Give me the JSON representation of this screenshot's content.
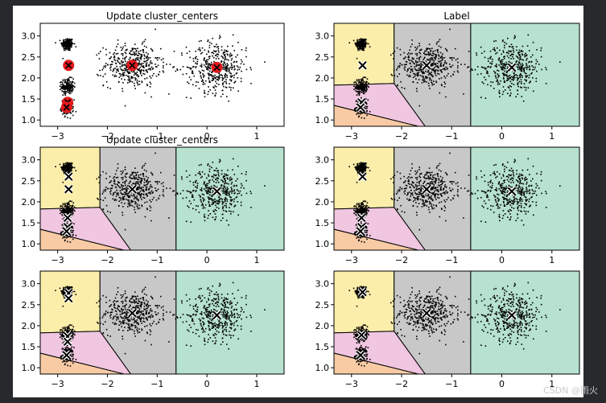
{
  "figure_bg": "#ffffff",
  "page_bg": "#27292d",
  "watermark": "CSDN @雨火",
  "region_colors": [
    "#fbeeaa",
    "#f0c6e0",
    "#f8cba5",
    "#c8c8c8",
    "#b6e2cf"
  ],
  "centroid_color_update": "#e41a1c",
  "chart_data": [
    {
      "type": "scatter",
      "panel": "top-left",
      "title": "Update cluster_centers",
      "xlim": [
        -3.35,
        1.55
      ],
      "ylim": [
        0.85,
        3.3
      ],
      "xticks": [
        -3,
        -2,
        -1,
        0,
        1
      ],
      "yticks": [
        1.0,
        1.5,
        2.0,
        2.5,
        3.0
      ],
      "show_regions": false,
      "blob_centers": [
        [
          -2.8,
          2.8
        ],
        [
          -2.8,
          1.8
        ],
        [
          -2.8,
          1.3
        ],
        [
          -1.5,
          2.3
        ],
        [
          0.2,
          2.25
        ]
      ],
      "centroids": [
        [
          -2.78,
          2.3
        ],
        [
          -2.8,
          1.42
        ],
        [
          -2.82,
          1.3
        ],
        [
          -1.5,
          2.3
        ],
        [
          0.2,
          2.25
        ]
      ],
      "centroid_style": "red-dot"
    },
    {
      "type": "scatter",
      "panel": "top-right",
      "title": "Label",
      "xlim": [
        -3.35,
        1.55
      ],
      "ylim": [
        0.85,
        3.3
      ],
      "xticks": [
        -3,
        -2,
        -1,
        0,
        1
      ],
      "yticks": [
        1.0,
        1.5,
        2.0,
        2.5,
        3.0
      ],
      "show_regions": true,
      "blob_centers": [
        [
          -2.8,
          2.8
        ],
        [
          -2.8,
          1.8
        ],
        [
          -2.8,
          1.3
        ],
        [
          -1.5,
          2.3
        ],
        [
          0.2,
          2.25
        ]
      ],
      "centroids": [
        [
          -2.78,
          2.3
        ],
        [
          -2.8,
          1.42
        ],
        [
          -2.82,
          1.3
        ],
        [
          -1.5,
          2.3
        ],
        [
          0.2,
          2.25
        ]
      ],
      "centroid_style": "x"
    },
    {
      "type": "scatter",
      "panel": "middle-left",
      "title": "Update cluster_centers",
      "xlim": [
        -3.35,
        1.55
      ],
      "ylim": [
        0.85,
        3.3
      ],
      "xticks": [
        -3,
        -2,
        -1,
        0,
        1
      ],
      "yticks": [
        1.0,
        1.5,
        2.0,
        2.5,
        3.0
      ],
      "show_regions": true,
      "blob_centers": [
        [
          -2.8,
          2.8
        ],
        [
          -2.8,
          1.8
        ],
        [
          -2.8,
          1.3
        ],
        [
          -1.5,
          2.3
        ],
        [
          0.2,
          2.25
        ]
      ],
      "centroids": [
        [
          -2.78,
          2.6
        ],
        [
          -2.78,
          2.3
        ],
        [
          -2.8,
          1.62
        ],
        [
          -2.8,
          1.4
        ],
        [
          -2.82,
          1.3
        ],
        [
          -1.5,
          2.3
        ],
        [
          0.2,
          2.25
        ]
      ],
      "centroid_style": "x"
    },
    {
      "type": "scatter",
      "panel": "middle-right",
      "title": "",
      "xlim": [
        -3.35,
        1.55
      ],
      "ylim": [
        0.85,
        3.3
      ],
      "xticks": [
        -3,
        -2,
        -1,
        0,
        1
      ],
      "yticks": [
        1.0,
        1.5,
        2.0,
        2.5,
        3.0
      ],
      "show_regions": true,
      "blob_centers": [
        [
          -2.8,
          2.8
        ],
        [
          -2.8,
          1.8
        ],
        [
          -2.8,
          1.3
        ],
        [
          -1.5,
          2.3
        ],
        [
          0.2,
          2.25
        ]
      ],
      "centroids": [
        [
          -2.78,
          2.6
        ],
        [
          -2.8,
          1.62
        ],
        [
          -2.8,
          1.4
        ],
        [
          -2.82,
          1.3
        ],
        [
          -1.5,
          2.3
        ],
        [
          0.2,
          2.25
        ]
      ],
      "centroid_style": "x"
    },
    {
      "type": "scatter",
      "panel": "bottom-left",
      "title": "",
      "xlim": [
        -3.35,
        1.55
      ],
      "ylim": [
        0.85,
        3.3
      ],
      "xticks": [
        -3,
        -2,
        -1,
        0,
        1
      ],
      "yticks": [
        1.0,
        1.5,
        2.0,
        2.5,
        3.0
      ],
      "show_regions": true,
      "blob_centers": [
        [
          -2.8,
          2.8
        ],
        [
          -2.8,
          1.8
        ],
        [
          -2.8,
          1.3
        ],
        [
          -1.5,
          2.3
        ],
        [
          0.2,
          2.25
        ]
      ],
      "centroids": [
        [
          -2.78,
          2.78
        ],
        [
          -2.78,
          2.65
        ],
        [
          -2.8,
          1.75
        ],
        [
          -2.8,
          1.62
        ],
        [
          -2.82,
          1.3
        ],
        [
          -1.5,
          2.3
        ],
        [
          0.2,
          2.25
        ]
      ],
      "centroid_style": "x"
    },
    {
      "type": "scatter",
      "panel": "bottom-right",
      "title": "",
      "xlim": [
        -3.35,
        1.55
      ],
      "ylim": [
        0.85,
        3.3
      ],
      "xticks": [
        -3,
        -2,
        -1,
        0,
        1
      ],
      "yticks": [
        1.0,
        1.5,
        2.0,
        2.5,
        3.0
      ],
      "show_regions": true,
      "blob_centers": [
        [
          -2.8,
          2.8
        ],
        [
          -2.8,
          1.8
        ],
        [
          -2.8,
          1.3
        ],
        [
          -1.5,
          2.3
        ],
        [
          0.2,
          2.25
        ]
      ],
      "centroids": [
        [
          -2.78,
          2.8
        ],
        [
          -2.8,
          1.78
        ],
        [
          -2.82,
          1.3
        ],
        [
          -1.5,
          2.3
        ],
        [
          0.2,
          2.25
        ]
      ],
      "centroid_style": "x"
    }
  ]
}
